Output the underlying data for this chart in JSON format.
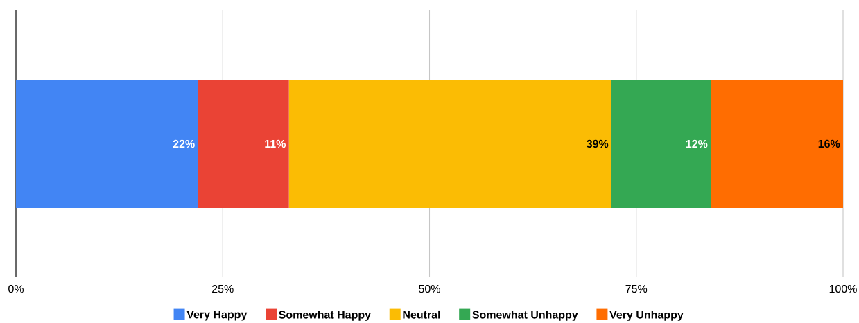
{
  "chart_data": {
    "type": "bar",
    "orientation": "horizontal",
    "stacked": true,
    "categories": [
      null
    ],
    "series": [
      {
        "name": "Very Happy",
        "color": "#4285f4",
        "values": [
          22
        ],
        "value_labels": [
          "22%"
        ]
      },
      {
        "name": "Somewhat Happy",
        "color": "#ea4335",
        "values": [
          11
        ],
        "value_labels": [
          "11%"
        ]
      },
      {
        "name": "Neutral",
        "color": "#fbbc04",
        "values": [
          39
        ],
        "value_labels": [
          "39%"
        ]
      },
      {
        "name": "Somewhat Unhappy",
        "color": "#34a853",
        "values": [
          12
        ],
        "value_labels": [
          "12%"
        ]
      },
      {
        "name": "Very Unhappy",
        "color": "#ff6d01",
        "values": [
          16
        ],
        "value_labels": [
          "16%"
        ]
      }
    ],
    "xlim": [
      0,
      100
    ],
    "xticks": [
      {
        "value": 0,
        "label": "0%"
      },
      {
        "value": 25,
        "label": "25%"
      },
      {
        "value": 50,
        "label": "50%"
      },
      {
        "value": 75,
        "label": "75%"
      },
      {
        "value": 100,
        "label": "100%"
      }
    ],
    "grid": "x",
    "legend": "bottom"
  }
}
